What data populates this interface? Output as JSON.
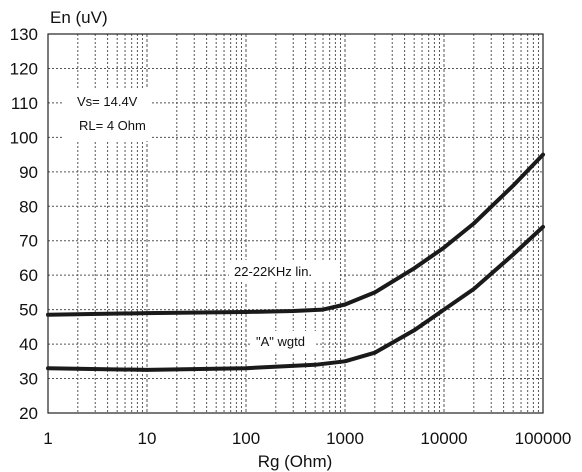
{
  "chart_data": {
    "type": "line",
    "xscale": "log",
    "xlim": [
      1,
      100000
    ],
    "ylim": [
      20,
      130
    ],
    "xlabel": "Rg (Ohm)",
    "ylabel": "En (uV)",
    "xticks": [
      "1",
      "10",
      "100",
      "1000",
      "10000",
      "100000"
    ],
    "yticks": [
      "20",
      "30",
      "40",
      "50",
      "60",
      "70",
      "80",
      "90",
      "100",
      "110",
      "120",
      "130"
    ],
    "grid": true,
    "annotation_lines": [
      "Vs= 14.4V",
      "RL= 4 Ohm"
    ],
    "series": [
      {
        "name": "22-22KHz lin.",
        "x": [
          1,
          10,
          100,
          300,
          600,
          1000,
          2000,
          5000,
          10000,
          20000,
          50000,
          100000
        ],
        "y": [
          48.5,
          49,
          49.3,
          49.6,
          50,
          51.5,
          55,
          62,
          68,
          75,
          86,
          95
        ]
      },
      {
        "name": "\"A\" wgtd",
        "x": [
          1,
          10,
          100,
          500,
          1000,
          2000,
          5000,
          10000,
          20000,
          50000,
          100000
        ],
        "y": [
          33,
          32.5,
          33,
          34,
          35,
          37.5,
          44,
          50,
          56,
          66,
          74
        ]
      }
    ],
    "line_color": "#1a1a1a",
    "grid_color": "#555555"
  }
}
